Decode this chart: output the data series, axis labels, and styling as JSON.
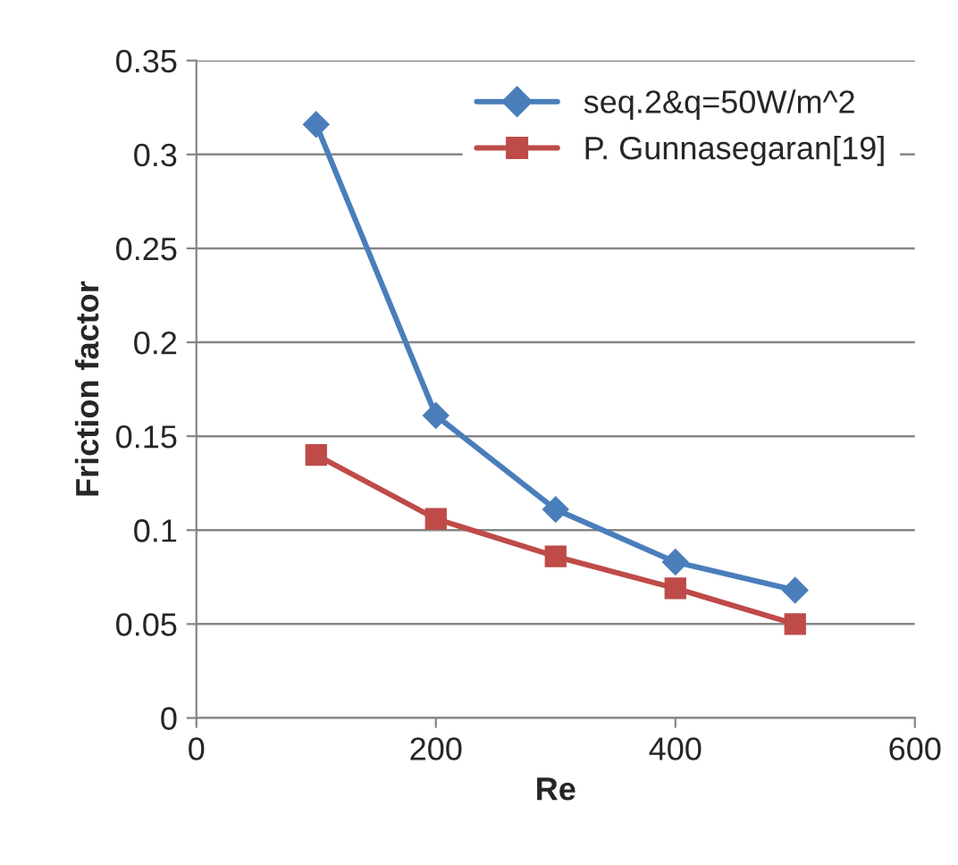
{
  "chart_data": {
    "type": "line",
    "xlabel": "Re",
    "ylabel": "Friction factor",
    "x": [
      100,
      200,
      300,
      400,
      500
    ],
    "series": [
      {
        "name": "seq.2&q=50W/m^2",
        "color": "#4a7ebb",
        "marker": "diamond",
        "values": [
          0.316,
          0.161,
          0.111,
          0.083,
          0.068
        ]
      },
      {
        "name": "P. Gunnasegaran[19]",
        "color": "#be4b48",
        "marker": "square",
        "values": [
          0.14,
          0.106,
          0.086,
          0.069,
          0.05
        ]
      }
    ],
    "xlim": [
      0,
      600
    ],
    "xticks": [
      0,
      200,
      400,
      600
    ],
    "ylim": [
      0,
      0.35
    ],
    "yticks": [
      0,
      0.05,
      0.1,
      0.15,
      0.2,
      0.25,
      0.3,
      0.35
    ],
    "grid": "y",
    "legend": "top right"
  }
}
